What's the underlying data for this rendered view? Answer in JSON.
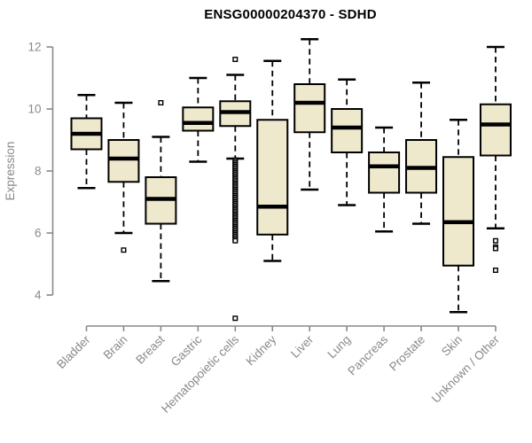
{
  "chart_data": {
    "type": "boxplot",
    "title": "ENSG00000204370 - SDHD",
    "xlabel": "",
    "ylabel": "Expression",
    "ylim": [
      4,
      12
    ],
    "yticks": [
      4,
      6,
      8,
      10,
      12
    ],
    "grid": false,
    "legend": "none",
    "categories": [
      "Bladder",
      "Brain",
      "Breast",
      "Gastric",
      "Hematopoietic cells",
      "Kidney",
      "Liver",
      "Lung",
      "Pancreas",
      "Prostate",
      "Skin",
      "Unknown / Other"
    ],
    "series": [
      {
        "category": "Bladder",
        "low": 7.45,
        "q1": 8.7,
        "median": 9.2,
        "q3": 9.7,
        "high": 10.45,
        "outliers": []
      },
      {
        "category": "Brain",
        "low": 6.0,
        "q1": 7.65,
        "median": 8.4,
        "q3": 9.0,
        "high": 10.2,
        "outliers": [
          5.45
        ]
      },
      {
        "category": "Breast",
        "low": 4.45,
        "q1": 6.3,
        "median": 7.1,
        "q3": 7.8,
        "high": 9.1,
        "outliers": [
          10.2
        ]
      },
      {
        "category": "Gastric",
        "low": 8.3,
        "q1": 9.3,
        "median": 9.55,
        "q3": 10.05,
        "high": 11.0,
        "outliers": []
      },
      {
        "category": "Hematopoietic cells",
        "low": 8.4,
        "q1": 9.45,
        "median": 9.9,
        "q3": 10.25,
        "high": 11.1,
        "outliers": [
          11.6,
          8.35,
          8.3,
          8.25,
          8.2,
          8.15,
          8.1,
          8.05,
          8.0,
          7.95,
          7.9,
          7.85,
          7.8,
          7.75,
          7.7,
          7.65,
          7.6,
          7.55,
          7.5,
          7.45,
          7.4,
          7.35,
          7.3,
          7.25,
          7.2,
          7.15,
          7.1,
          7.05,
          7.0,
          6.95,
          6.9,
          6.85,
          6.8,
          6.75,
          6.7,
          6.65,
          6.6,
          6.55,
          6.5,
          6.45,
          6.4,
          6.35,
          6.3,
          6.25,
          6.2,
          6.15,
          6.1,
          6.05,
          6.0,
          5.95,
          5.9,
          5.85,
          5.8,
          5.75,
          3.25
        ]
      },
      {
        "category": "Kidney",
        "low": 5.1,
        "q1": 5.95,
        "median": 6.85,
        "q3": 9.65,
        "high": 11.55,
        "outliers": []
      },
      {
        "category": "Liver",
        "low": 7.4,
        "q1": 9.25,
        "median": 10.2,
        "q3": 10.8,
        "high": 12.25,
        "outliers": []
      },
      {
        "category": "Lung",
        "low": 6.9,
        "q1": 8.6,
        "median": 9.4,
        "q3": 10.0,
        "high": 10.95,
        "outliers": []
      },
      {
        "category": "Pancreas",
        "low": 6.05,
        "q1": 7.3,
        "median": 8.15,
        "q3": 8.6,
        "high": 9.4,
        "outliers": []
      },
      {
        "category": "Prostate",
        "low": 6.3,
        "q1": 7.3,
        "median": 8.1,
        "q3": 9.0,
        "high": 10.85,
        "outliers": []
      },
      {
        "category": "Skin",
        "low": 3.45,
        "q1": 4.95,
        "median": 6.35,
        "q3": 8.45,
        "high": 9.65,
        "outliers": []
      },
      {
        "category": "Unknown / Other",
        "low": 6.15,
        "q1": 8.5,
        "median": 9.5,
        "q3": 10.15,
        "high": 12.0,
        "outliers": [
          5.75,
          5.55,
          5.5,
          4.8
        ]
      }
    ],
    "colors": {
      "box_fill": "#EEE8CD",
      "box_border": "#000000",
      "median": "#000000",
      "whisker": "#000000",
      "outlier_stroke": "#000000",
      "outlier_fill": "#ffffff",
      "axis": "#898989",
      "tick_label": "#898989",
      "title": "#000000"
    }
  }
}
